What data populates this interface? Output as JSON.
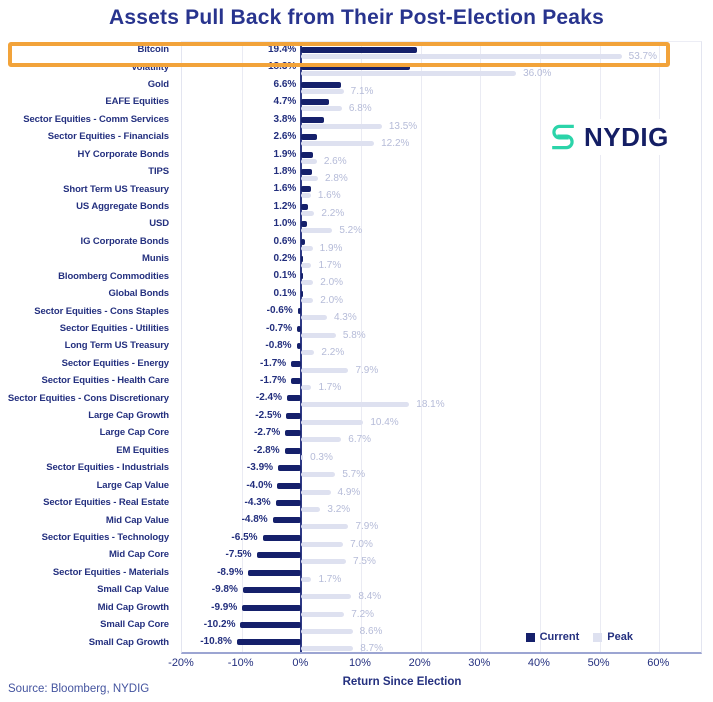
{
  "chart_data": {
    "type": "bar",
    "orientation": "horizontal",
    "title": "Assets Pull Back from Their Post-Election Peaks",
    "xlabel": "Return Since Election",
    "xlim": [
      -20,
      67
    ],
    "grid": "vertical",
    "legend": [
      "Current",
      "Peak"
    ],
    "legend_position": "bottom-right",
    "x_ticks": [
      {
        "value": -20,
        "label": "-20%"
      },
      {
        "value": -10,
        "label": "-10%"
      },
      {
        "value": 0,
        "label": "0%"
      },
      {
        "value": 10,
        "label": "10%"
      },
      {
        "value": 20,
        "label": "20%"
      },
      {
        "value": 30,
        "label": "30%"
      },
      {
        "value": 40,
        "label": "40%"
      },
      {
        "value": 50,
        "label": "50%"
      },
      {
        "value": 60,
        "label": "60%"
      }
    ],
    "categories": [
      "Bitcoin",
      "Volatility",
      "Gold",
      "EAFE Equities",
      "Sector Equities - Comm Services",
      "Sector Equities - Financials",
      "HY Corporate Bonds",
      "TIPS",
      "Short Term US Treasury",
      "US Aggregate Bonds",
      "USD",
      "IG Corporate Bonds",
      "Munis",
      "Bloomberg Commodities",
      "Global Bonds",
      "Sector Equities - Cons Staples",
      "Sector Equities - Utilities",
      "Long Term US Treasury",
      "Sector Equities - Energy",
      "Sector Equities - Health Care",
      "Sector Equities - Cons Discretionary",
      "Large Cap Growth",
      "Large Cap Core",
      "EM Equities",
      "Sector Equities - Industrials",
      "Large Cap Value",
      "Sector Equities - Real Estate",
      "Mid Cap Value",
      "Sector Equities - Technology",
      "Mid Cap Core",
      "Sector Equities - Materials",
      "Small Cap Value",
      "Mid Cap Growth",
      "Small Cap Core",
      "Small Cap Growth"
    ],
    "series": [
      {
        "name": "Current",
        "values": [
          19.4,
          18.3,
          6.6,
          4.7,
          3.8,
          2.6,
          1.9,
          1.8,
          1.6,
          1.2,
          1.0,
          0.6,
          0.2,
          0.1,
          0.1,
          -0.6,
          -0.7,
          -0.8,
          -1.7,
          -1.7,
          -2.4,
          -2.5,
          -2.7,
          -2.8,
          -3.9,
          -4.0,
          -4.3,
          -4.8,
          -6.5,
          -7.5,
          -8.9,
          -9.8,
          -9.9,
          -10.2,
          -10.8
        ]
      },
      {
        "name": "Peak",
        "values": [
          53.7,
          36.0,
          7.1,
          6.8,
          13.5,
          12.2,
          2.6,
          2.8,
          1.6,
          2.2,
          5.2,
          1.9,
          1.7,
          2.0,
          2.0,
          4.3,
          5.8,
          2.2,
          7.9,
          1.7,
          18.1,
          10.4,
          6.7,
          0.3,
          5.7,
          4.9,
          3.2,
          7.9,
          7.0,
          7.5,
          1.7,
          8.4,
          7.2,
          8.6,
          8.7
        ]
      }
    ],
    "highlight": {
      "category": "Bitcoin"
    }
  },
  "colors": {
    "bar_current": "#15206B",
    "bar_peak": "#DEE1F0",
    "highlight": "#F2A33A",
    "title_navy": "#28348E",
    "peak_label": "#B5BBD8",
    "zero_axis": "#2F3A85",
    "logo_teal": "#2BD4A9",
    "logo_navy": "#141E64"
  },
  "logo": {
    "text": "NYDIG"
  },
  "source": "Source: Bloomberg, NYDIG"
}
